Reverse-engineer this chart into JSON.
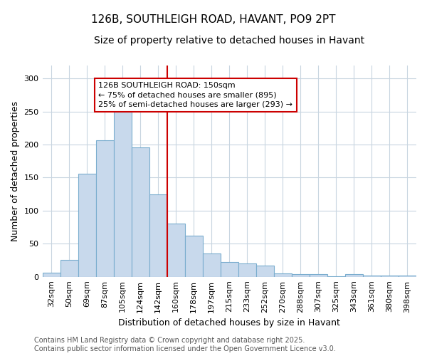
{
  "title": "126B, SOUTHLEIGH ROAD, HAVANT, PO9 2PT",
  "subtitle": "Size of property relative to detached houses in Havant",
  "xlabel": "Distribution of detached houses by size in Havant",
  "ylabel": "Number of detached properties",
  "categories": [
    "32sqm",
    "50sqm",
    "69sqm",
    "87sqm",
    "105sqm",
    "124sqm",
    "142sqm",
    "160sqm",
    "178sqm",
    "197sqm",
    "215sqm",
    "233sqm",
    "252sqm",
    "270sqm",
    "288sqm",
    "307sqm",
    "325sqm",
    "343sqm",
    "361sqm",
    "380sqm",
    "398sqm"
  ],
  "values": [
    6,
    26,
    156,
    206,
    250,
    196,
    125,
    80,
    62,
    35,
    22,
    20,
    17,
    5,
    4,
    4,
    1,
    4,
    2,
    2,
    2
  ],
  "bar_color": "#c8d9ec",
  "bar_edge_color": "#7aadce",
  "vline_color": "#cc0000",
  "vline_x_index": 7,
  "annotation_text": "126B SOUTHLEIGH ROAD: 150sqm\n← 75% of detached houses are smaller (895)\n25% of semi-detached houses are larger (293) →",
  "annotation_box_edge_color": "#cc0000",
  "annotation_box_fill": "#ffffff",
  "footer": "Contains HM Land Registry data © Crown copyright and database right 2025.\nContains public sector information licensed under the Open Government Licence v3.0.",
  "fig_bg": "#ffffff",
  "plot_bg": "#ffffff",
  "grid_color": "#c8d5e0",
  "ylim": [
    0,
    320
  ],
  "yticks": [
    0,
    50,
    100,
    150,
    200,
    250,
    300
  ],
  "title_fontsize": 11,
  "subtitle_fontsize": 10,
  "axis_label_fontsize": 9,
  "tick_fontsize": 8,
  "annotation_fontsize": 8,
  "footer_fontsize": 7
}
